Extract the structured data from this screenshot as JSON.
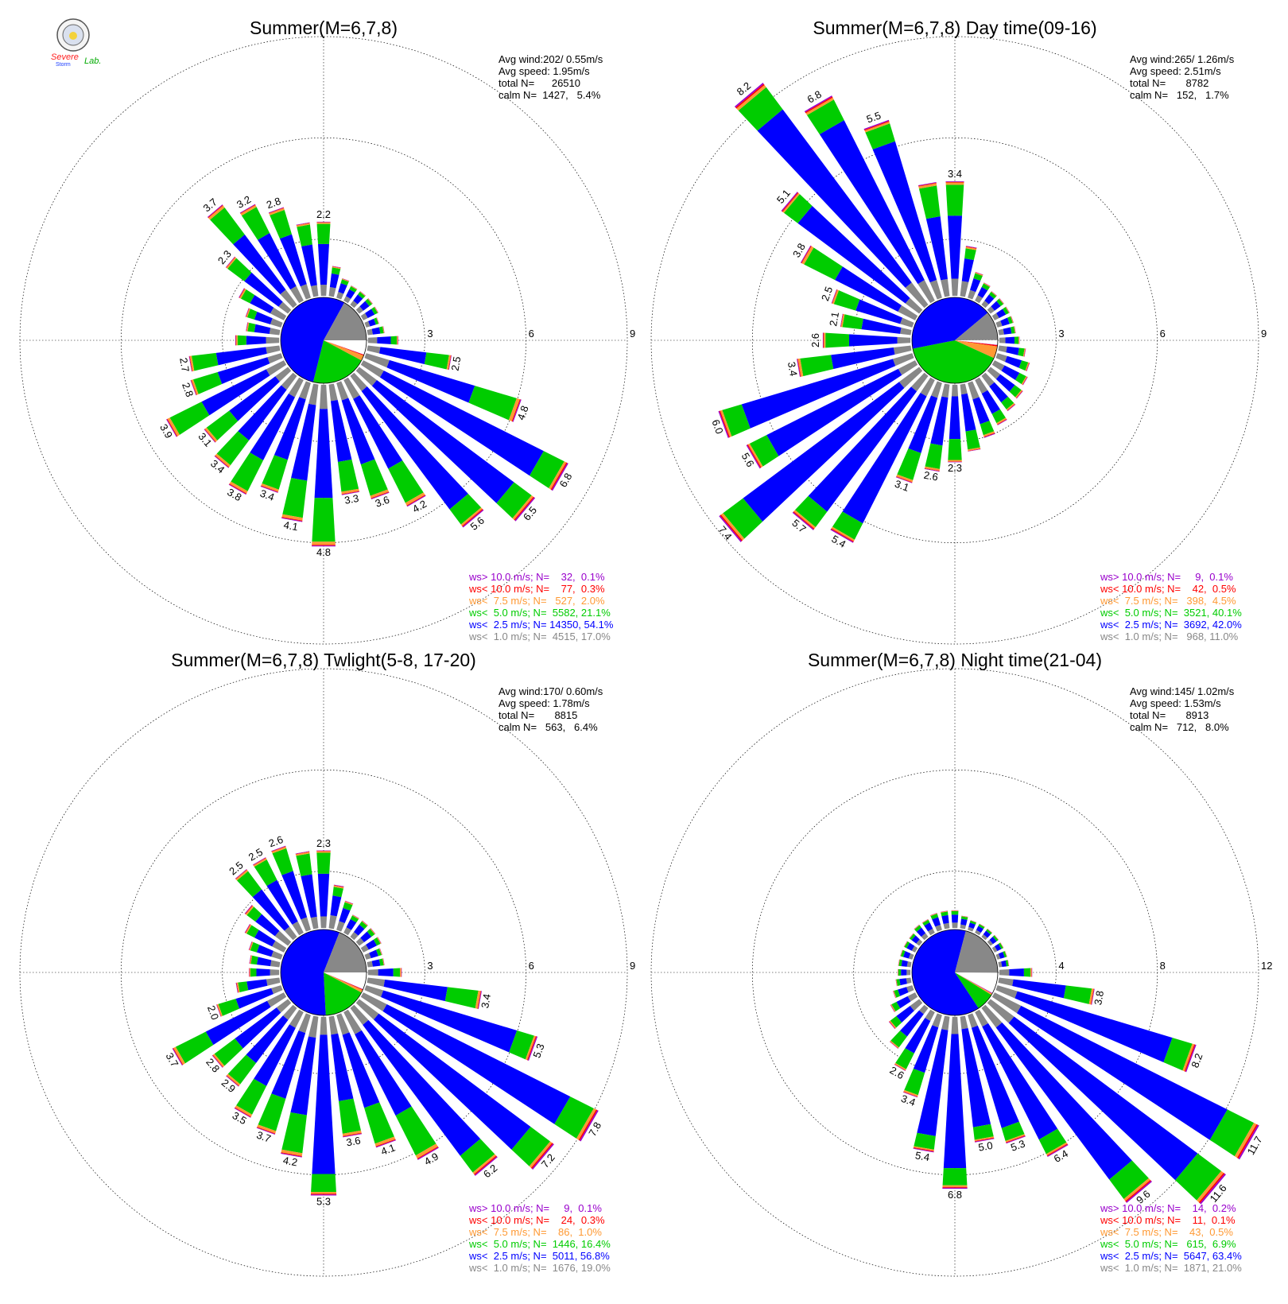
{
  "logo": {
    "line1": "Severe",
    "line2": "Storm",
    "line3": "Lab."
  },
  "chart_data": [
    {
      "type": "windrose",
      "title": "Summer(M=6,7,8)",
      "info": [
        "Avg wind:202/ 0.55m/s",
        "Avg speed: 1.95m/s",
        "total N=      26510",
        "calm N=  1427,   5.4%"
      ],
      "rmax": 9,
      "ticks": [
        "3",
        "6",
        "9"
      ],
      "legend": [
        {
          "text": "ws> 10.0 m/s; N=    32,  0.1%",
          "color": "#9900cc"
        },
        {
          "text": "ws< 10.0 m/s; N=    77,  0.3%",
          "color": "#ff0000"
        },
        {
          "text": "ws<  7.5 m/s; N=   527,  2.0%",
          "color": "#ff9933"
        },
        {
          "text": "ws<  5.0 m/s; N=  5582, 21.1%",
          "color": "#00cc00"
        },
        {
          "text": "ws<  2.5 m/s; N= 14350, 54.1%",
          "color": "#0000ff"
        },
        {
          "text": "ws<  1.0 m/s; N=  4515, 17.0%",
          "color": "#888888"
        }
      ],
      "pie_fractions": [
        0.054,
        0.001,
        0.003,
        0.02,
        0.211,
        0.541,
        0.17
      ],
      "directions": [
        {
          "dir": 0,
          "total": 2.2,
          "label": "2.2"
        },
        {
          "dir": 10,
          "total": 0.9
        },
        {
          "dir": 20,
          "total": 0.6
        },
        {
          "dir": 30,
          "total": 0.5
        },
        {
          "dir": 40,
          "total": 0.5
        },
        {
          "dir": 50,
          "total": 0.5
        },
        {
          "dir": 60,
          "total": 0.5
        },
        {
          "dir": 70,
          "total": 0.4
        },
        {
          "dir": 80,
          "total": 0.5
        },
        {
          "dir": 90,
          "total": 0.9
        },
        {
          "dir": 100,
          "total": 2.5,
          "label": "2.5"
        },
        {
          "dir": 110,
          "total": 4.8,
          "label": "4.8"
        },
        {
          "dir": 120,
          "total": 6.8,
          "label": "6.8"
        },
        {
          "dir": 130,
          "total": 6.5,
          "label": "6.5"
        },
        {
          "dir": 140,
          "total": 5.6,
          "label": "5.6"
        },
        {
          "dir": 150,
          "total": 4.2,
          "label": "4.2"
        },
        {
          "dir": 160,
          "total": 3.6,
          "label": "3.6"
        },
        {
          "dir": 170,
          "total": 3.3,
          "label": "3.3"
        },
        {
          "dir": 180,
          "total": 4.8,
          "label": "4.8"
        },
        {
          "dir": 190,
          "total": 4.1,
          "label": "4.1"
        },
        {
          "dir": 200,
          "total": 3.4,
          "label": "3.4"
        },
        {
          "dir": 210,
          "total": 3.8,
          "label": "3.8"
        },
        {
          "dir": 220,
          "total": 3.4,
          "label": "3.4"
        },
        {
          "dir": 230,
          "total": 3.1,
          "label": "3.1"
        },
        {
          "dir": 240,
          "total": 3.9,
          "label": "3.9"
        },
        {
          "dir": 250,
          "total": 2.8,
          "label": "2.8"
        },
        {
          "dir": 260,
          "total": 2.7,
          "label": "2.7"
        },
        {
          "dir": 270,
          "total": 1.3
        },
        {
          "dir": 280,
          "total": 1.0
        },
        {
          "dir": 290,
          "total": 1.1
        },
        {
          "dir": 300,
          "total": 1.5
        },
        {
          "dir": 310,
          "total": 2.3,
          "label": "2.3"
        },
        {
          "dir": 320,
          "total": 3.7,
          "label": "3.7"
        },
        {
          "dir": 330,
          "total": 3.2,
          "label": "3.2"
        },
        {
          "dir": 340,
          "total": 2.8,
          "label": "2.8"
        },
        {
          "dir": 350,
          "total": 2.2
        }
      ]
    },
    {
      "type": "windrose",
      "title": "Summer(M=6,7,8) Day time(09-16)",
      "info": [
        "Avg wind:265/ 1.26m/s",
        "Avg speed: 2.51m/s",
        "total N=       8782",
        "calm N=   152,   1.7%"
      ],
      "rmax": 9,
      "ticks": [
        "3",
        "6",
        "9"
      ],
      "legend": [
        {
          "text": "ws> 10.0 m/s; N=     9,  0.1%",
          "color": "#9900cc"
        },
        {
          "text": "ws< 10.0 m/s; N=    42,  0.5%",
          "color": "#ff0000"
        },
        {
          "text": "ws<  7.5 m/s; N=   398,  4.5%",
          "color": "#ff9933"
        },
        {
          "text": "ws<  5.0 m/s; N=  3521, 40.1%",
          "color": "#00cc00"
        },
        {
          "text": "ws<  2.5 m/s; N=  3692, 42.0%",
          "color": "#0000ff"
        },
        {
          "text": "ws<  1.0 m/s; N=   968, 11.0%",
          "color": "#888888"
        }
      ],
      "pie_fractions": [
        0.017,
        0.001,
        0.005,
        0.045,
        0.401,
        0.42,
        0.11
      ],
      "directions": [
        {
          "dir": 0,
          "total": 3.4,
          "label": "3.4"
        },
        {
          "dir": 10,
          "total": 1.5
        },
        {
          "dir": 20,
          "total": 0.8
        },
        {
          "dir": 30,
          "total": 0.6
        },
        {
          "dir": 40,
          "total": 0.5
        },
        {
          "dir": 50,
          "total": 0.5
        },
        {
          "dir": 60,
          "total": 0.5
        },
        {
          "dir": 70,
          "total": 0.5
        },
        {
          "dir": 80,
          "total": 0.5
        },
        {
          "dir": 90,
          "total": 0.6
        },
        {
          "dir": 100,
          "total": 0.8
        },
        {
          "dir": 110,
          "total": 1.0
        },
        {
          "dir": 120,
          "total": 1.1
        },
        {
          "dir": 130,
          "total": 1.2
        },
        {
          "dir": 140,
          "total": 1.3
        },
        {
          "dir": 150,
          "total": 1.5
        },
        {
          "dir": 160,
          "total": 1.7
        },
        {
          "dir": 170,
          "total": 2.0
        },
        {
          "dir": 180,
          "total": 2.3,
          "label": "2.3"
        },
        {
          "dir": 190,
          "total": 2.6,
          "label": "2.6"
        },
        {
          "dir": 200,
          "total": 3.1,
          "label": "3.1"
        },
        {
          "dir": 210,
          "total": 5.4,
          "label": "5.4"
        },
        {
          "dir": 220,
          "total": 5.7,
          "label": "5.7"
        },
        {
          "dir": 230,
          "total": 7.4,
          "label": "7.4"
        },
        {
          "dir": 240,
          "total": 5.6,
          "label": "5.6"
        },
        {
          "dir": 250,
          "total": 6.0,
          "label": "6.0"
        },
        {
          "dir": 260,
          "total": 3.4,
          "label": "3.4"
        },
        {
          "dir": 270,
          "total": 2.6,
          "label": "2.6"
        },
        {
          "dir": 280,
          "total": 2.1,
          "label": "2.1"
        },
        {
          "dir": 290,
          "total": 2.5,
          "label": "2.5"
        },
        {
          "dir": 300,
          "total": 3.8,
          "label": "3.8"
        },
        {
          "dir": 310,
          "total": 5.1,
          "label": "5.1"
        },
        {
          "dir": 320,
          "total": 8.2,
          "label": "8.2"
        },
        {
          "dir": 330,
          "total": 6.8,
          "label": "6.8"
        },
        {
          "dir": 340,
          "total": 5.5,
          "label": "5.5"
        },
        {
          "dir": 350,
          "total": 3.4
        }
      ]
    },
    {
      "type": "windrose",
      "title": "Summer(M=6,7,8) Twlight(5-8, 17-20)",
      "info": [
        "Avg wind:170/ 0.60m/s",
        "Avg speed: 1.78m/s",
        "total N=       8815",
        "calm N=   563,   6.4%"
      ],
      "rmax": 9,
      "ticks": [
        "3",
        "6",
        "9"
      ],
      "legend": [
        {
          "text": "ws> 10.0 m/s; N=     9,  0.1%",
          "color": "#9900cc"
        },
        {
          "text": "ws< 10.0 m/s; N=    24,  0.3%",
          "color": "#ff0000"
        },
        {
          "text": "ws<  7.5 m/s; N=    86,  1.0%",
          "color": "#ff9933"
        },
        {
          "text": "ws<  5.0 m/s; N=  1446, 16.4%",
          "color": "#00cc00"
        },
        {
          "text": "ws<  2.5 m/s; N=  5011, 56.8%",
          "color": "#0000ff"
        },
        {
          "text": "ws<  1.0 m/s; N=  1676, 19.0%",
          "color": "#888888"
        }
      ],
      "pie_fractions": [
        0.064,
        0.001,
        0.003,
        0.01,
        0.164,
        0.568,
        0.19
      ],
      "directions": [
        {
          "dir": 0,
          "total": 2.3,
          "label": "2.3"
        },
        {
          "dir": 10,
          "total": 1.3
        },
        {
          "dir": 20,
          "total": 0.9
        },
        {
          "dir": 30,
          "total": 0.6
        },
        {
          "dir": 40,
          "total": 0.6
        },
        {
          "dir": 50,
          "total": 0.6
        },
        {
          "dir": 60,
          "total": 0.6
        },
        {
          "dir": 70,
          "total": 0.5
        },
        {
          "dir": 80,
          "total": 0.5
        },
        {
          "dir": 90,
          "total": 1.0
        },
        {
          "dir": 100,
          "total": 3.4,
          "label": "3.4"
        },
        {
          "dir": 110,
          "total": 5.3,
          "label": "5.3"
        },
        {
          "dir": 120,
          "total": 7.8,
          "label": "7.8"
        },
        {
          "dir": 130,
          "total": 7.2,
          "label": "7.2"
        },
        {
          "dir": 140,
          "total": 6.2,
          "label": "6.2"
        },
        {
          "dir": 150,
          "total": 4.9,
          "label": "4.9"
        },
        {
          "dir": 160,
          "total": 4.1,
          "label": "4.1"
        },
        {
          "dir": 170,
          "total": 3.6,
          "label": "3.6"
        },
        {
          "dir": 180,
          "total": 5.3,
          "label": "5.3"
        },
        {
          "dir": 190,
          "total": 4.2,
          "label": "4.2"
        },
        {
          "dir": 200,
          "total": 3.7,
          "label": "3.7"
        },
        {
          "dir": 210,
          "total": 3.5,
          "label": "3.5"
        },
        {
          "dir": 220,
          "total": 2.9,
          "label": "2.9"
        },
        {
          "dir": 230,
          "total": 2.8,
          "label": "2.8"
        },
        {
          "dir": 240,
          "total": 3.7,
          "label": "3.7"
        },
        {
          "dir": 250,
          "total": 2.0,
          "label": "2.0"
        },
        {
          "dir": 260,
          "total": 1.3
        },
        {
          "dir": 270,
          "total": 0.9
        },
        {
          "dir": 280,
          "total": 0.9
        },
        {
          "dir": 290,
          "total": 1.0
        },
        {
          "dir": 300,
          "total": 1.3
        },
        {
          "dir": 310,
          "total": 1.6
        },
        {
          "dir": 320,
          "total": 2.5,
          "label": "2.5"
        },
        {
          "dir": 330,
          "total": 2.5,
          "label": "2.5"
        },
        {
          "dir": 340,
          "total": 2.6,
          "label": "2.6"
        },
        {
          "dir": 350,
          "total": 2.3
        }
      ]
    },
    {
      "type": "windrose",
      "title": "Summer(M=6,7,8) Night time(21-04)",
      "info": [
        "Avg wind:145/ 1.02m/s",
        "Avg speed: 1.53m/s",
        "total N=       8913",
        "calm N=   712,   8.0%"
      ],
      "rmax": 12,
      "ticks": [
        "4",
        "8",
        "12"
      ],
      "legend": [
        {
          "text": "ws> 10.0 m/s; N=    14,  0.2%",
          "color": "#9900cc"
        },
        {
          "text": "ws< 10.0 m/s; N=    11,  0.1%",
          "color": "#ff0000"
        },
        {
          "text": "ws<  7.5 m/s; N=    43,  0.5%",
          "color": "#ff9933"
        },
        {
          "text": "ws<  5.0 m/s; N=   615,  6.9%",
          "color": "#00cc00"
        },
        {
          "text": "ws<  2.5 m/s; N=  5647, 63.4%",
          "color": "#0000ff"
        },
        {
          "text": "ws<  1.0 m/s; N=  1871, 21.0%",
          "color": "#888888"
        }
      ],
      "pie_fractions": [
        0.08,
        0.002,
        0.001,
        0.005,
        0.069,
        0.634,
        0.21
      ],
      "directions": [
        {
          "dir": 0,
          "total": 0.7
        },
        {
          "dir": 10,
          "total": 0.5
        },
        {
          "dir": 20,
          "total": 0.4
        },
        {
          "dir": 30,
          "total": 0.4
        },
        {
          "dir": 40,
          "total": 0.4
        },
        {
          "dir": 50,
          "total": 0.4
        },
        {
          "dir": 60,
          "total": 0.4
        },
        {
          "dir": 70,
          "total": 0.4
        },
        {
          "dir": 80,
          "total": 0.4
        },
        {
          "dir": 90,
          "total": 1.3
        },
        {
          "dir": 100,
          "total": 3.8,
          "label": "3.8"
        },
        {
          "dir": 110,
          "total": 8.2,
          "label": "8.2"
        },
        {
          "dir": 120,
          "total": 11.7,
          "label": "11.7"
        },
        {
          "dir": 130,
          "total": 11.6,
          "label": "11.6"
        },
        {
          "dir": 140,
          "total": 9.6,
          "label": "9.6"
        },
        {
          "dir": 150,
          "total": 6.4,
          "label": "6.4"
        },
        {
          "dir": 160,
          "total": 5.3,
          "label": "5.3"
        },
        {
          "dir": 170,
          "total": 5.0,
          "label": "5.0"
        },
        {
          "dir": 180,
          "total": 6.8,
          "label": "6.8"
        },
        {
          "dir": 190,
          "total": 5.4,
          "label": "5.4"
        },
        {
          "dir": 200,
          "total": 3.4,
          "label": "3.4"
        },
        {
          "dir": 210,
          "total": 2.6,
          "label": "2.6"
        },
        {
          "dir": 220,
          "total": 2.0
        },
        {
          "dir": 230,
          "total": 1.5
        },
        {
          "dir": 240,
          "total": 1.1
        },
        {
          "dir": 250,
          "total": 0.8
        },
        {
          "dir": 260,
          "total": 0.6
        },
        {
          "dir": 270,
          "total": 0.5
        },
        {
          "dir": 280,
          "total": 0.5
        },
        {
          "dir": 290,
          "total": 0.5
        },
        {
          "dir": 300,
          "total": 0.5
        },
        {
          "dir": 310,
          "total": 0.5
        },
        {
          "dir": 320,
          "total": 0.6
        },
        {
          "dir": 330,
          "total": 0.6
        },
        {
          "dir": 340,
          "total": 0.7
        },
        {
          "dir": 350,
          "total": 0.7
        }
      ]
    }
  ]
}
